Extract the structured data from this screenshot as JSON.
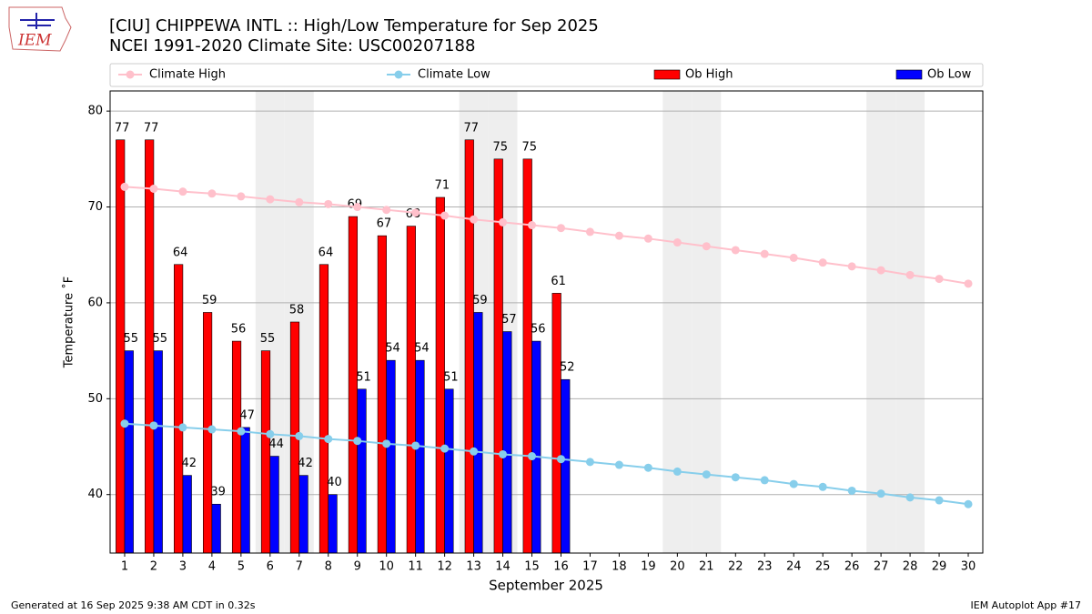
{
  "logo_text": "IEM",
  "chart_data": {
    "type": "bar",
    "title": "[CIU] CHIPPEWA INTL :: High/Low Temperature for Sep 2025",
    "subtitle": "NCEI 1991-2020 Climate Site: USC00207188",
    "x_label": "September 2025",
    "y_label": "Temperature ˚F",
    "footer_left": "Generated at 16 Sep 2025 9:38 AM CDT in 0.32s",
    "footer_right": "IEM Autoplot App #17",
    "x": [
      1,
      2,
      3,
      4,
      5,
      6,
      7,
      8,
      9,
      10,
      11,
      12,
      13,
      14,
      15,
      16,
      17,
      18,
      19,
      20,
      21,
      22,
      23,
      24,
      25,
      26,
      27,
      28,
      29,
      30
    ],
    "xlim": [
      0.5,
      30.5
    ],
    "xticks": [
      1,
      2,
      3,
      4,
      5,
      6,
      7,
      8,
      9,
      10,
      11,
      12,
      13,
      14,
      15,
      16,
      17,
      18,
      19,
      20,
      21,
      22,
      23,
      24,
      25,
      26,
      27,
      28,
      29,
      30
    ],
    "ylim": [
      33.9,
      82.1
    ],
    "yticks": [
      40,
      50,
      60,
      70,
      80
    ],
    "grid": true,
    "shaded_days": [
      6,
      7,
      13,
      14,
      20,
      21,
      27,
      28
    ],
    "series": [
      {
        "name": "Climate High",
        "type": "line",
        "color": "#ffc0cb",
        "values": [
          72.1,
          71.9,
          71.6,
          71.4,
          71.1,
          70.8,
          70.5,
          70.3,
          70.0,
          69.7,
          69.4,
          69.1,
          68.7,
          68.4,
          68.1,
          67.8,
          67.4,
          67.0,
          66.7,
          66.3,
          65.9,
          65.5,
          65.1,
          64.7,
          64.2,
          63.8,
          63.4,
          62.9,
          62.5,
          62.0
        ]
      },
      {
        "name": "Climate Low",
        "type": "line",
        "color": "#87ceeb",
        "values": [
          47.4,
          47.2,
          47.0,
          46.8,
          46.6,
          46.3,
          46.1,
          45.8,
          45.6,
          45.3,
          45.1,
          44.8,
          44.5,
          44.2,
          44.0,
          43.7,
          43.4,
          43.1,
          42.8,
          42.4,
          42.1,
          41.8,
          41.5,
          41.1,
          40.8,
          40.4,
          40.1,
          39.7,
          39.4,
          39.0
        ]
      },
      {
        "name": "Ob High",
        "type": "bar",
        "color": "#ff0000",
        "values": [
          77,
          77,
          64,
          59,
          56,
          55,
          58,
          64,
          69,
          67,
          68,
          71,
          77,
          75,
          75,
          61,
          null,
          null,
          null,
          null,
          null,
          null,
          null,
          null,
          null,
          null,
          null,
          null,
          null,
          null
        ]
      },
      {
        "name": "Ob Low",
        "type": "bar",
        "color": "#0000ff",
        "values": [
          55,
          55,
          42,
          39,
          47,
          44,
          42,
          40,
          51,
          54,
          54,
          51,
          59,
          57,
          56,
          52,
          null,
          null,
          null,
          null,
          null,
          null,
          null,
          null,
          null,
          null,
          null,
          null,
          null,
          null
        ]
      }
    ]
  }
}
